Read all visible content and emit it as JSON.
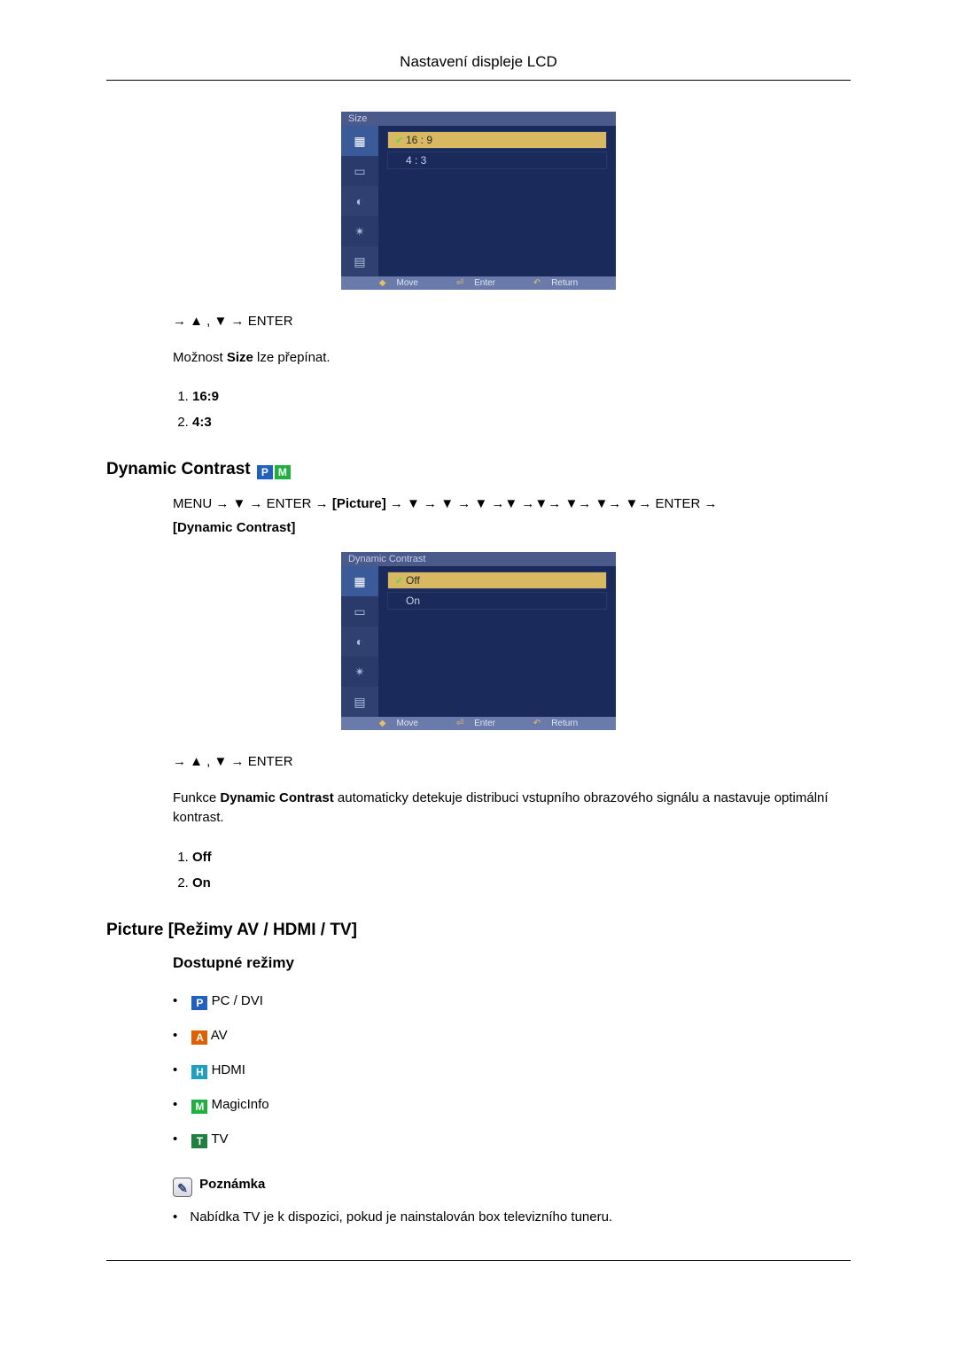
{
  "header": {
    "title": "Nastavení displeje LCD"
  },
  "osd1": {
    "title": "Size",
    "options": [
      {
        "label": "16 : 9",
        "selected": true,
        "checked": true
      },
      {
        "label": "4 : 3",
        "selected": false,
        "checked": false
      }
    ],
    "footer": {
      "move": "Move",
      "enter": "Enter",
      "return": "Return"
    },
    "colors": {
      "panel_bg": "#1a2a5a",
      "titlebar_bg": "#4a5a8a",
      "icon_col_bg": "#2a3a6a",
      "icon_sel_bg": "#3a5a9a",
      "opt_sel_bg": "#d8b860",
      "footer_bg": "#6a7aaa",
      "check": "#58d858"
    }
  },
  "size_section": {
    "nav_text": "→ ▲ , ▼ → ENTER",
    "body_prefix": "Možnost ",
    "body_bold": "Size",
    "body_suffix": " lze přepínat.",
    "list": [
      "16:9",
      "4:3"
    ]
  },
  "dc_section": {
    "heading": "Dynamic Contrast",
    "badges": [
      "P",
      "M"
    ],
    "menu_line_parts": {
      "p1": "MENU → ▼ → ENTER → ",
      "br1": "[Picture]",
      "p2": " → ▼ → ▼ → ▼ →▼ →▼→ ▼→ ▼→ ▼→ ENTER → ",
      "br2": "[Dynamic Contrast]"
    }
  },
  "osd2": {
    "title": "Dynamic Contrast",
    "options": [
      {
        "label": "Off",
        "selected": true,
        "checked": true
      },
      {
        "label": "On",
        "selected": false,
        "checked": false
      }
    ],
    "footer": {
      "move": "Move",
      "enter": "Enter",
      "return": "Return"
    }
  },
  "dc_body": {
    "nav_text": "→ ▲ , ▼ → ENTER",
    "body_prefix": "Funkce ",
    "body_bold": "Dynamic Contrast",
    "body_suffix": " automaticky detekuje distribuci vstupního obrazového signálu a nastavuje optimální kontrast.",
    "list": [
      "Off",
      "On"
    ]
  },
  "picture_section": {
    "heading": "Picture [Režimy AV / HDMI / TV]",
    "sub": "Dostupné režimy",
    "modes": [
      {
        "badge": "P",
        "label": "PC / DVI"
      },
      {
        "badge": "A",
        "label": "AV"
      },
      {
        "badge": "H",
        "label": "HDMI"
      },
      {
        "badge": "M",
        "label": "MagicInfo"
      },
      {
        "badge": "T",
        "label": "TV"
      }
    ],
    "note_label": "Poznámka",
    "note_item": "Nabídka TV je k dispozici, pokud je nainstalován box televizního tuneru."
  },
  "badge_colors": {
    "P": "#2060c0",
    "M": "#20b040",
    "A": "#e06000",
    "H": "#20a0c0",
    "T": "#208040"
  }
}
